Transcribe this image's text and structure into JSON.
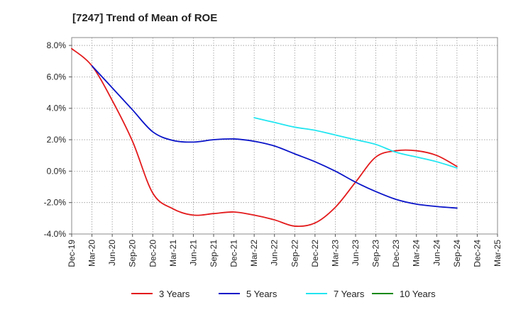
{
  "chart_data": {
    "type": "line",
    "title": "[7247]  Trend of Mean of ROE",
    "xlabel": "",
    "ylabel": "",
    "ylim": [
      -4.0,
      8.5
    ],
    "yticks": [
      -4.0,
      -2.0,
      0.0,
      2.0,
      4.0,
      6.0,
      8.0
    ],
    "ytick_labels": [
      "-4.0%",
      "-2.0%",
      "0.0%",
      "2.0%",
      "4.0%",
      "6.0%",
      "8.0%"
    ],
    "x_labels": [
      "Dec-19",
      "Mar-20",
      "Jun-20",
      "Sep-20",
      "Dec-20",
      "Mar-21",
      "Jun-21",
      "Sep-21",
      "Dec-21",
      "Mar-22",
      "Jun-22",
      "Sep-22",
      "Dec-22",
      "Mar-23",
      "Jun-23",
      "Sep-23",
      "Dec-23",
      "Mar-24",
      "Jun-24",
      "Sep-24",
      "Dec-24",
      "Mar-25"
    ],
    "grid": true,
    "legend_position": "bottom",
    "series": [
      {
        "name": "3 Years",
        "color": "#e31a1c",
        "values": [
          7.8,
          6.7,
          4.5,
          1.9,
          -1.4,
          -2.4,
          -2.8,
          -2.7,
          -2.6,
          -2.8,
          -3.1,
          -3.5,
          -3.3,
          -2.3,
          -0.7,
          0.9,
          1.3,
          1.3,
          1.0,
          0.3
        ]
      },
      {
        "name": "5 Years",
        "color": "#0a14c8",
        "values": [
          null,
          6.7,
          5.3,
          3.9,
          2.5,
          1.95,
          1.85,
          2.0,
          2.05,
          1.9,
          1.6,
          1.1,
          0.6,
          0.0,
          -0.7,
          -1.3,
          -1.8,
          -2.1,
          -2.25,
          -2.35
        ]
      },
      {
        "name": "7 Years",
        "color": "#22e5f0",
        "values": [
          null,
          null,
          null,
          null,
          null,
          null,
          null,
          null,
          null,
          3.4,
          3.1,
          2.8,
          2.6,
          2.3,
          2.0,
          1.7,
          1.2,
          0.9,
          0.6,
          0.2
        ]
      },
      {
        "name": "10 Years",
        "color": "#1a8a1a",
        "values": []
      }
    ]
  }
}
